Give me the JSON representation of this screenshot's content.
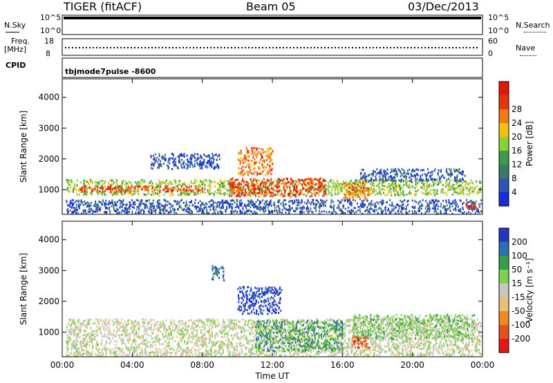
{
  "header": {
    "station": "TIGER (fitACF)",
    "beam": "Beam 05",
    "date": "03/Dec/2013"
  },
  "top_panels": {
    "nsky_label": "N.Sky",
    "nsky_ticks": [
      "10^5",
      "10^0"
    ],
    "nsearch_label": "N.Search",
    "nsearch_ticks": [
      "10^5",
      "10^0"
    ],
    "freq_label": "Freq.",
    "freq_unit": "[MHz]",
    "freq_ticks": [
      "18",
      "8"
    ],
    "nave_label": "Nave",
    "nave_ticks": [
      "60",
      "0"
    ],
    "cpid_label": "CPID",
    "cpid_value": "tbjmode7pulse -8600"
  },
  "colors": {
    "power_scale": [
      "#1a2bd9",
      "#2e55b4",
      "#3a7a6a",
      "#3f9a4e",
      "#8bcf3a",
      "#f2c10f",
      "#f27a12",
      "#e8330d",
      "#e01a0a"
    ],
    "velocity_scale": [
      "#2536c8",
      "#2e6fb0",
      "#3a9b4a",
      "#7dd14b",
      "#c8c8c0",
      "#e8c07a",
      "#f08a20",
      "#e8501a",
      "#e01a1a"
    ]
  },
  "chart_data": [
    {
      "type": "heatmap",
      "name": "power",
      "ylabel": "Slant Range [km]",
      "yticks": [
        "1000",
        "2000",
        "3000",
        "4000"
      ],
      "ylim": [
        200,
        4600
      ],
      "xlim": [
        0,
        24
      ],
      "xticks": [
        0,
        4,
        8,
        12,
        16,
        20,
        24
      ],
      "colorbar_label": "Power [dB]",
      "colorbar_ticks": [
        "4",
        "8",
        "12",
        "16",
        "20",
        "24",
        "28"
      ],
      "bands": [
        {
          "x": [
            0.2,
            23.9
          ],
          "y": [
            850,
            1350
          ],
          "level": 4
        },
        {
          "x": [
            1,
            8
          ],
          "y": [
            950,
            1150
          ],
          "level": 7
        },
        {
          "x": [
            9.5,
            15
          ],
          "y": [
            800,
            1400
          ],
          "level": 7
        },
        {
          "x": [
            10,
            12
          ],
          "y": [
            1500,
            2400
          ],
          "level": 6
        },
        {
          "x": [
            16,
            17.5
          ],
          "y": [
            700,
            1300
          ],
          "level": 6
        },
        {
          "x": [
            0.2,
            23.9
          ],
          "y": [
            250,
            700
          ],
          "level": 1
        },
        {
          "x": [
            23,
            23.9
          ],
          "y": [
            400,
            600
          ],
          "level": 7
        },
        {
          "x": [
            17,
            23
          ],
          "y": [
            1300,
            1700
          ],
          "level": 1
        },
        {
          "x": [
            5,
            9
          ],
          "y": [
            1700,
            2200
          ],
          "level": 1
        }
      ]
    },
    {
      "type": "heatmap",
      "name": "velocity",
      "ylabel": "Slant Range [km]",
      "yticks": [
        "1000",
        "2000",
        "3000",
        "4000"
      ],
      "ylim": [
        200,
        4600
      ],
      "xlim": [
        0,
        24
      ],
      "xticks": [
        0,
        4,
        8,
        12,
        16,
        20,
        24
      ],
      "xticklabels": [
        "00:00",
        "04:00",
        "08:00",
        "12:00",
        "16:00",
        "20:00",
        "00:00"
      ],
      "xlabel": "Time UT",
      "colorbar_label": "Velocity [m s⁻¹]",
      "colorbar_ticks": [
        "200",
        "100",
        "50",
        "15",
        "-15",
        "-50",
        "-100",
        "-200"
      ],
      "bands": [
        {
          "x": [
            0.2,
            23.9
          ],
          "y": [
            250,
            1450
          ],
          "level": 4
        },
        {
          "x": [
            10,
            12.5
          ],
          "y": [
            1600,
            2500
          ],
          "level": 0
        },
        {
          "x": [
            11,
            16
          ],
          "y": [
            400,
            1400
          ],
          "level": 2
        },
        {
          "x": [
            16.5,
            23.5
          ],
          "y": [
            800,
            1600
          ],
          "level": 3
        },
        {
          "x": [
            16.5,
            17.5
          ],
          "y": [
            500,
            900
          ],
          "level": 7
        },
        {
          "x": [
            8.5,
            9.2
          ],
          "y": [
            2700,
            3200
          ],
          "level": 1
        }
      ]
    }
  ]
}
